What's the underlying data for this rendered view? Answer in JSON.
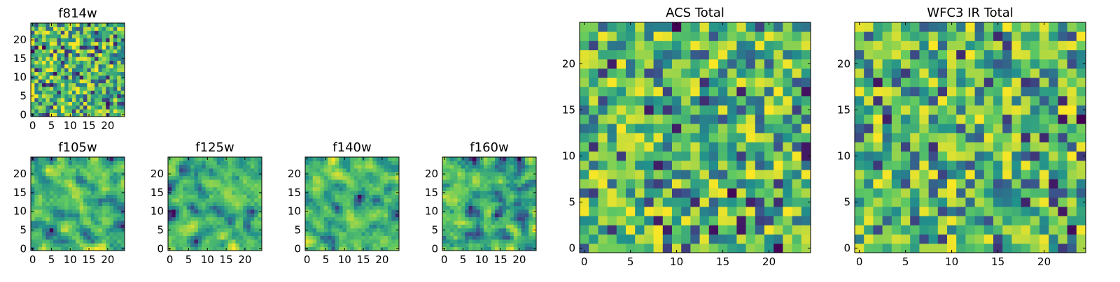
{
  "figure": {
    "background": "#ffffff",
    "colormap": "viridis",
    "colormap_stops": [
      "#440154",
      "#3b528b",
      "#21918c",
      "#5ec962",
      "#fde725"
    ]
  },
  "chart_data": [
    {
      "type": "heatmap",
      "title": "f814w",
      "grid_size": [
        25,
        25
      ],
      "xlim": [
        -0.5,
        24.5
      ],
      "ylim": [
        -0.5,
        24.5
      ],
      "xticks": [
        0,
        5,
        10,
        15,
        20
      ],
      "yticks": [
        0,
        5,
        10,
        15,
        20
      ],
      "xtick_labels": [
        "0",
        "5",
        "10",
        "15",
        "20"
      ],
      "ytick_labels": [
        "0",
        "5",
        "10",
        "15",
        "20"
      ],
      "pattern": "uncorrelated pixel noise",
      "value_range": [
        0,
        1
      ],
      "seed": 814
    },
    {
      "type": "heatmap",
      "title": "f105w",
      "grid_size": [
        25,
        25
      ],
      "xlim": [
        -0.5,
        24.5
      ],
      "ylim": [
        -0.5,
        24.5
      ],
      "xticks": [
        0,
        5,
        10,
        15,
        20
      ],
      "yticks": [
        0,
        5,
        10,
        15,
        20
      ],
      "xtick_labels": [
        "0",
        "5",
        "10",
        "15",
        "20"
      ],
      "ytick_labels": [
        "0",
        "5",
        "10",
        "15",
        "20"
      ],
      "pattern": "spatially correlated noise",
      "value_range": [
        0,
        1
      ],
      "seed": 105
    },
    {
      "type": "heatmap",
      "title": "f125w",
      "grid_size": [
        25,
        25
      ],
      "xlim": [
        -0.5,
        24.5
      ],
      "ylim": [
        -0.5,
        24.5
      ],
      "xticks": [
        0,
        5,
        10,
        15,
        20
      ],
      "yticks": [
        0,
        5,
        10,
        15,
        20
      ],
      "xtick_labels": [
        "0",
        "5",
        "10",
        "15",
        "20"
      ],
      "ytick_labels": [
        "0",
        "5",
        "10",
        "15",
        "20"
      ],
      "pattern": "spatially correlated noise",
      "value_range": [
        0,
        1
      ],
      "seed": 125
    },
    {
      "type": "heatmap",
      "title": "f140w",
      "grid_size": [
        25,
        25
      ],
      "xlim": [
        -0.5,
        24.5
      ],
      "ylim": [
        -0.5,
        24.5
      ],
      "xticks": [
        0,
        5,
        10,
        15,
        20
      ],
      "yticks": [
        0,
        5,
        10,
        15,
        20
      ],
      "xtick_labels": [
        "0",
        "5",
        "10",
        "15",
        "20"
      ],
      "ytick_labels": [
        "0",
        "5",
        "10",
        "15",
        "20"
      ],
      "pattern": "spatially correlated noise",
      "value_range": [
        0,
        1
      ],
      "seed": 140
    },
    {
      "type": "heatmap",
      "title": "f160w",
      "grid_size": [
        25,
        25
      ],
      "xlim": [
        -0.5,
        24.5
      ],
      "ylim": [
        -0.5,
        24.5
      ],
      "xticks": [
        0,
        5,
        10,
        15,
        20
      ],
      "yticks": [
        0,
        5,
        10,
        15,
        20
      ],
      "xtick_labels": [
        "0",
        "5",
        "10",
        "15",
        "20"
      ],
      "ytick_labels": [
        "0",
        "5",
        "10",
        "15",
        "20"
      ],
      "pattern": "spatially correlated noise",
      "value_range": [
        0,
        1
      ],
      "seed": 160
    },
    {
      "type": "heatmap",
      "title": "ACS Total",
      "grid_size": [
        25,
        25
      ],
      "xlim": [
        -0.5,
        24.5
      ],
      "ylim": [
        -0.5,
        24.5
      ],
      "xticks": [
        0,
        5,
        10,
        15,
        20
      ],
      "yticks": [
        0,
        5,
        10,
        15,
        20
      ],
      "xtick_labels": [
        "0",
        "5",
        "10",
        "15",
        "20"
      ],
      "ytick_labels": [
        "0",
        "5",
        "10",
        "15",
        "20"
      ],
      "pattern": "uncorrelated pixel noise",
      "value_range": [
        0,
        1
      ],
      "seed": 901
    },
    {
      "type": "heatmap",
      "title": "WFC3 IR Total",
      "grid_size": [
        25,
        25
      ],
      "xlim": [
        -0.5,
        24.5
      ],
      "ylim": [
        -0.5,
        24.5
      ],
      "xticks": [
        0,
        5,
        10,
        15,
        20
      ],
      "yticks": [
        0,
        5,
        10,
        15,
        20
      ],
      "xtick_labels": [
        "0",
        "5",
        "10",
        "15",
        "20"
      ],
      "ytick_labels": [
        "0",
        "5",
        "10",
        "15",
        "20"
      ],
      "pattern": "uncorrelated pixel noise",
      "value_range": [
        0,
        1
      ],
      "seed": 902
    }
  ]
}
